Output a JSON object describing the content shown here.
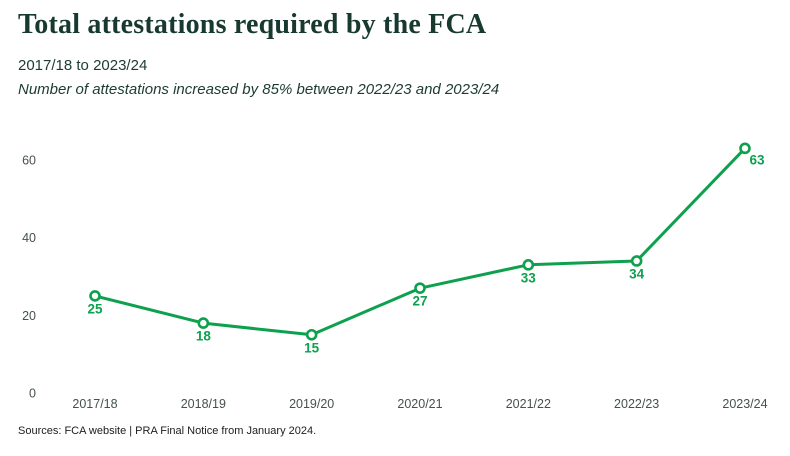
{
  "header": {
    "title": "Total attestations required by the FCA",
    "subtitle": "2017/18 to 2023/24",
    "note": "Number of attestations increased by 85% between 2022/23 and 2023/24"
  },
  "chart_data": {
    "type": "line",
    "categories": [
      "2017/18",
      "2018/19",
      "2019/20",
      "2020/21",
      "2021/22",
      "2022/23",
      "2023/24"
    ],
    "values": [
      25,
      18,
      15,
      27,
      33,
      34,
      63
    ],
    "title": "Total attestations required by the FCA",
    "subtitle": "2017/18 to 2023/24",
    "annotation": "Number of attestations increased by 85% between 2022/23 and 2023/24",
    "xlabel": "",
    "ylabel": "",
    "ylim": [
      0,
      60
    ],
    "yticks": [
      0,
      20,
      40,
      60
    ],
    "grid": false,
    "legend": false,
    "axis_lines": false,
    "marker_style": "open-circle",
    "data_labels": [
      25,
      18,
      15,
      27,
      33,
      34,
      63
    ]
  },
  "footer": {
    "source": "Sources: FCA website | PRA Final Notice from January 2024."
  },
  "colors": {
    "line_green": "#0DA14E",
    "marker_fill": "#FFFFFF",
    "title_green": "#17392F",
    "axis_text": "#45514C",
    "source_text": "#20201E",
    "background": "#FFFFFF"
  }
}
